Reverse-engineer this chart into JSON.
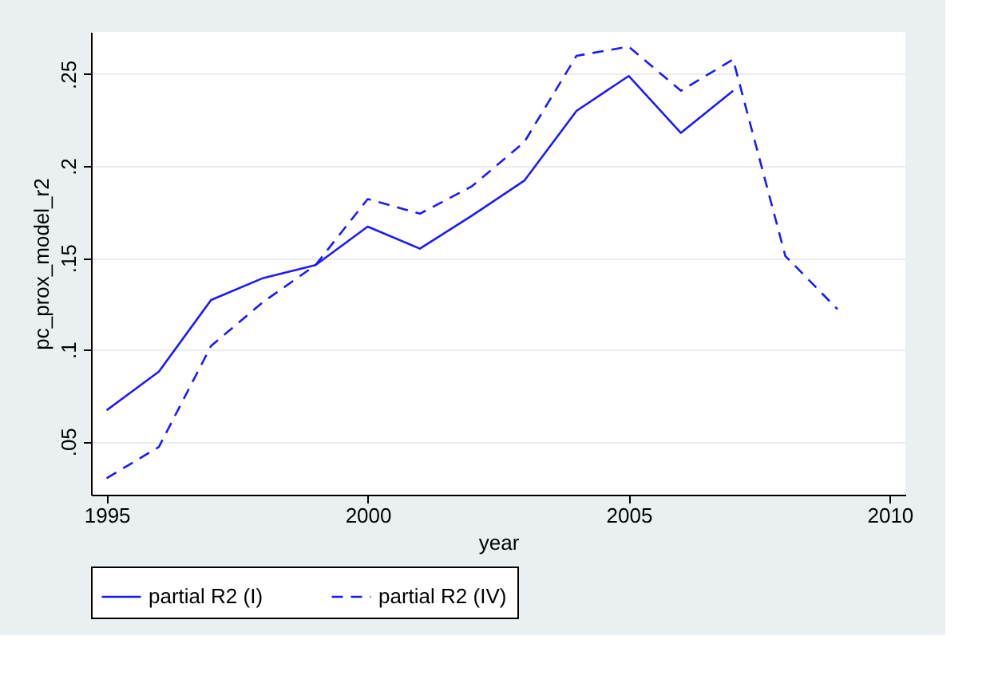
{
  "chart_data": {
    "type": "line",
    "xlabel": "year",
    "ylabel": "pc_prox_model_r2",
    "x": [
      1995,
      1996,
      1997,
      1998,
      1999,
      2000,
      2001,
      2002,
      2003,
      2004,
      2005,
      2006,
      2007,
      2008,
      2009
    ],
    "series": [
      {
        "name": "partial R2 (I)",
        "color": "#1a1aff",
        "line_style": "solid",
        "values": [
          0.067,
          0.088,
          0.127,
          0.139,
          0.146,
          0.167,
          0.155,
          0.173,
          0.192,
          0.23,
          0.249,
          0.218,
          0.241,
          null,
          null
        ]
      },
      {
        "name": "partial R2 (IV)",
        "color": "#1a1aff",
        "line_style": "dashed",
        "values": [
          0.03,
          0.047,
          0.102,
          0.126,
          0.146,
          0.182,
          0.174,
          0.189,
          0.213,
          0.26,
          0.265,
          0.241,
          0.258,
          0.151,
          0.122
        ]
      }
    ],
    "xlim": [
      1994.7,
      2010.3
    ],
    "ylim": [
      0.021,
      0.273
    ],
    "xticks": [
      1995,
      2000,
      2005,
      2010
    ],
    "yticks": [
      {
        "value": 0.05,
        "label": ".05"
      },
      {
        "value": 0.1,
        "label": ".1"
      },
      {
        "value": 0.15,
        "label": ".15"
      },
      {
        "value": 0.2,
        "label": ".2"
      },
      {
        "value": 0.25,
        "label": ".25"
      }
    ],
    "grid": "y",
    "legend": "bottom",
    "marker": "none"
  }
}
